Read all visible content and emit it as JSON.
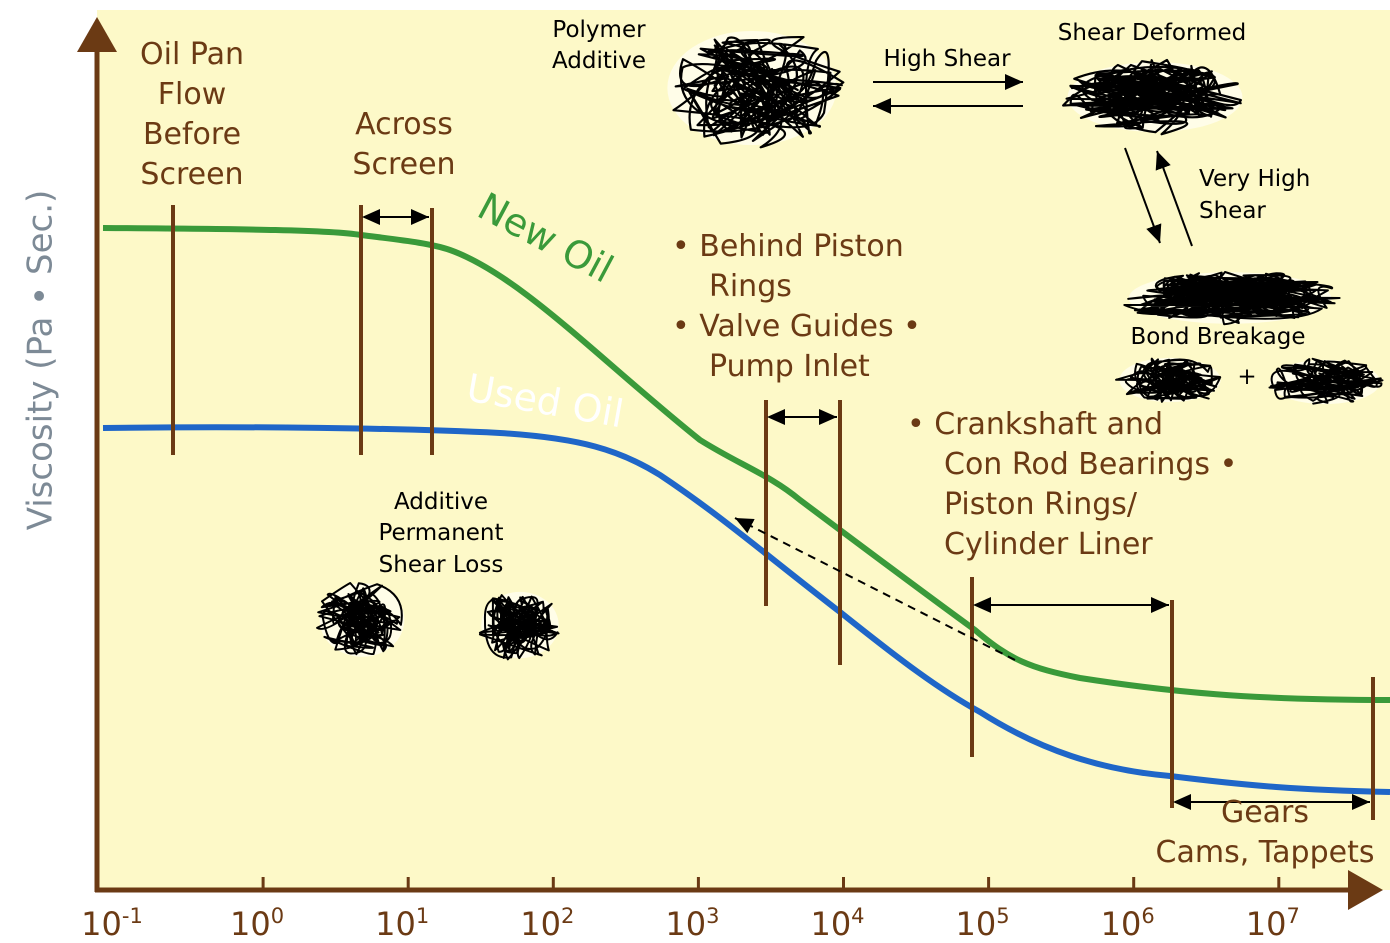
{
  "y_axis_label": "Viscosity (Pa • Sec.)",
  "x_ticks": [
    {
      "base": "10",
      "exponent": "-1"
    },
    {
      "base": "10",
      "exponent": "0"
    },
    {
      "base": "10",
      "exponent": "1"
    },
    {
      "base": "10",
      "exponent": "2"
    },
    {
      "base": "10",
      "exponent": "3"
    },
    {
      "base": "10",
      "exponent": "4"
    },
    {
      "base": "10",
      "exponent": "5"
    },
    {
      "base": "10",
      "exponent": "6"
    },
    {
      "base": "10",
      "exponent": "7"
    }
  ],
  "curve_labels": {
    "new_oil": "New Oil",
    "used_oil": "Used Oil"
  },
  "regions": {
    "oil_pan": [
      "Oil Pan",
      "Flow",
      "Before",
      "Screen"
    ],
    "across_screen": [
      "Across",
      "Screen"
    ],
    "piston": [
      "•  Behind Piston",
      "Rings",
      "•  Valve Guides •",
      "Pump Inlet"
    ],
    "crankshaft": [
      "•  Crankshaft and",
      "Con Rod Bearings •",
      "Piston Rings/",
      "Cylinder Liner"
    ],
    "gears": [
      "Gears",
      "Cams, Tappets"
    ]
  },
  "polymer": {
    "additive": [
      "Polymer",
      "Additive"
    ],
    "high_shear": "High Shear",
    "shear_deformed": "Shear Deformed",
    "very_high_shear": [
      "Very High",
      "Shear"
    ],
    "bond_breakage": "Bond Breakage",
    "plus": "+",
    "permanent_loss": [
      "Additive",
      "Permanent",
      "Shear Loss"
    ]
  }
}
